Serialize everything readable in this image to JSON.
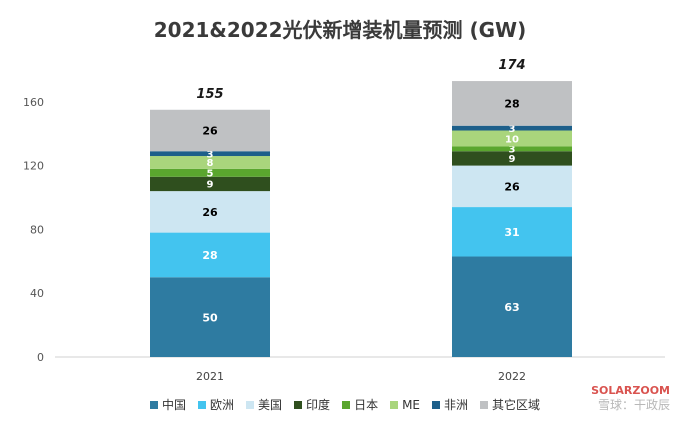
{
  "chart_data": {
    "type": "bar",
    "stacked": true,
    "title": "2021&2022光伏新增装机量预测 (GW)",
    "categories": [
      "2021",
      "2022"
    ],
    "totals": [
      "155",
      "174"
    ],
    "ylim": [
      0,
      170
    ],
    "yticks": [
      0,
      40,
      80,
      120,
      160
    ],
    "grid": false,
    "legend_position": "bottom",
    "series": [
      {
        "name": "中国",
        "color": "#2e7ba1",
        "values": [
          50,
          63
        ],
        "text_color": "#ffffff"
      },
      {
        "name": "欧洲",
        "color": "#43c4ef",
        "values": [
          28,
          31
        ],
        "text_color": "#ffffff"
      },
      {
        "name": "美国",
        "color": "#cde6f2",
        "values": [
          26,
          26
        ],
        "text_color": "#000000"
      },
      {
        "name": "印度",
        "color": "#2f4f1e",
        "values": [
          9,
          9
        ],
        "text_color": "#ffffff"
      },
      {
        "name": "日本",
        "color": "#5aa62e",
        "values": [
          5,
          3
        ],
        "text_color": "#ffffff"
      },
      {
        "name": "ME",
        "color": "#a9d57c",
        "values": [
          8,
          10
        ],
        "text_color": "#ffffff"
      },
      {
        "name": "非洲",
        "color": "#1d5f8a",
        "values": [
          3,
          3
        ],
        "text_color": "#ffffff"
      },
      {
        "name": "其它区域",
        "color": "#bfc1c3",
        "values": [
          26,
          28
        ],
        "text_color": "#000000"
      }
    ]
  },
  "watermark": {
    "line1": "SOLARZOOM",
    "line2": "雪球：干政辰"
  }
}
